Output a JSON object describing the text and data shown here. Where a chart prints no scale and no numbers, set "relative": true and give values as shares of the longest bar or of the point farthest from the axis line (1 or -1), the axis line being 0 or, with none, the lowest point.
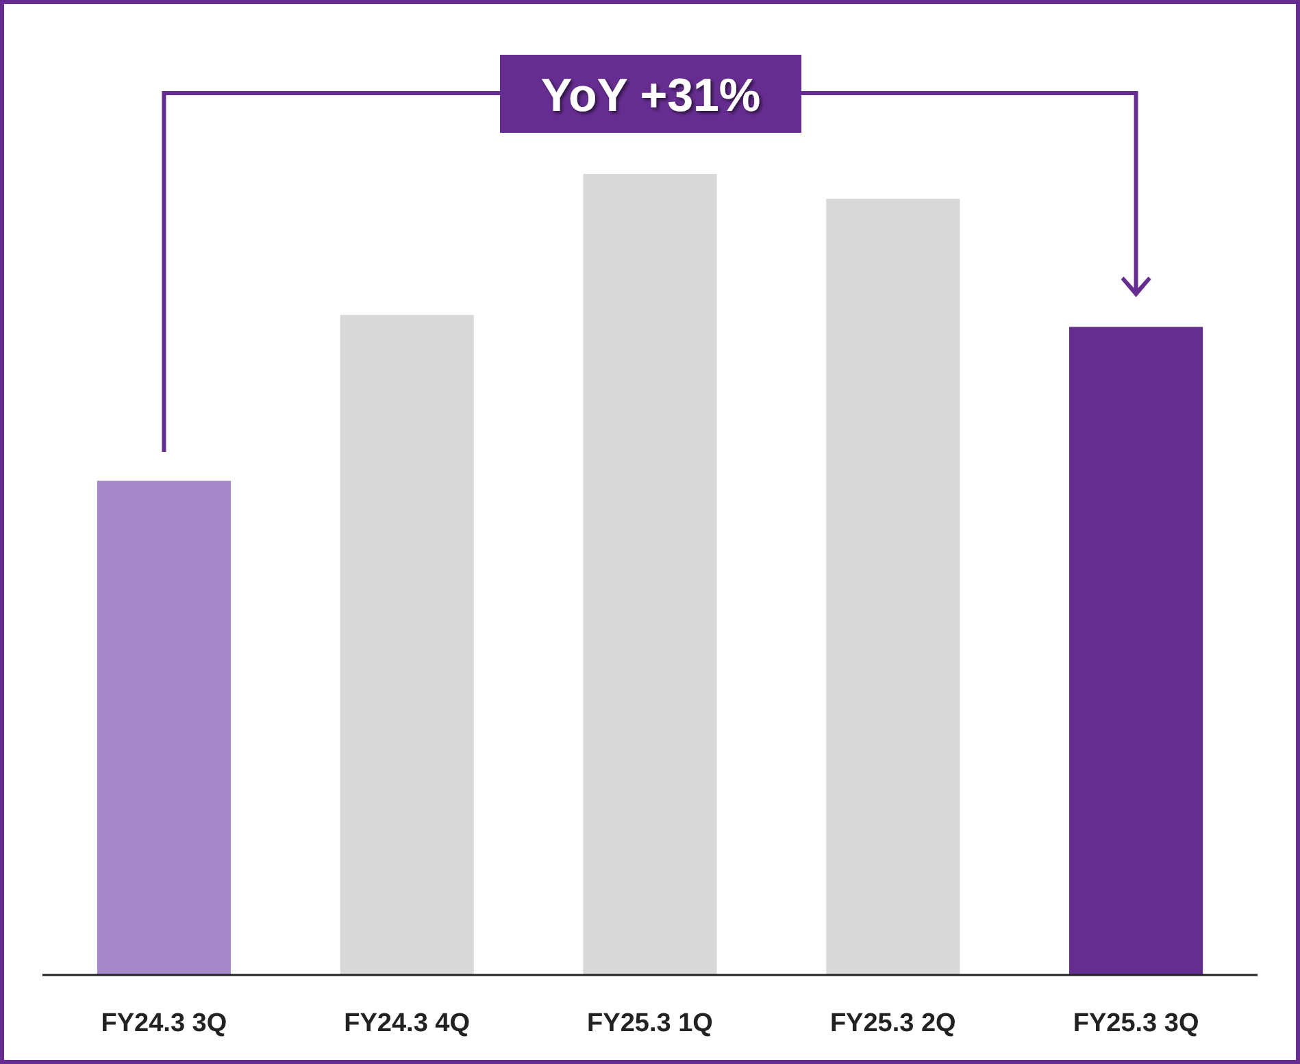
{
  "chart_data": {
    "type": "bar",
    "relative": true,
    "categories": [
      "FY24.3 3Q",
      "FY24.3 4Q",
      "FY25.3 1Q",
      "FY25.3 2Q",
      "FY25.3 3Q"
    ],
    "values": [
      0.617,
      0.824,
      1,
      0.969,
      0.809
    ],
    "colors": [
      "#a688c8",
      "#d9d9d9",
      "#d9d9d9",
      "#d9d9d9",
      "#662d91"
    ],
    "annotations": [
      "YoY +31%"
    ]
  }
}
